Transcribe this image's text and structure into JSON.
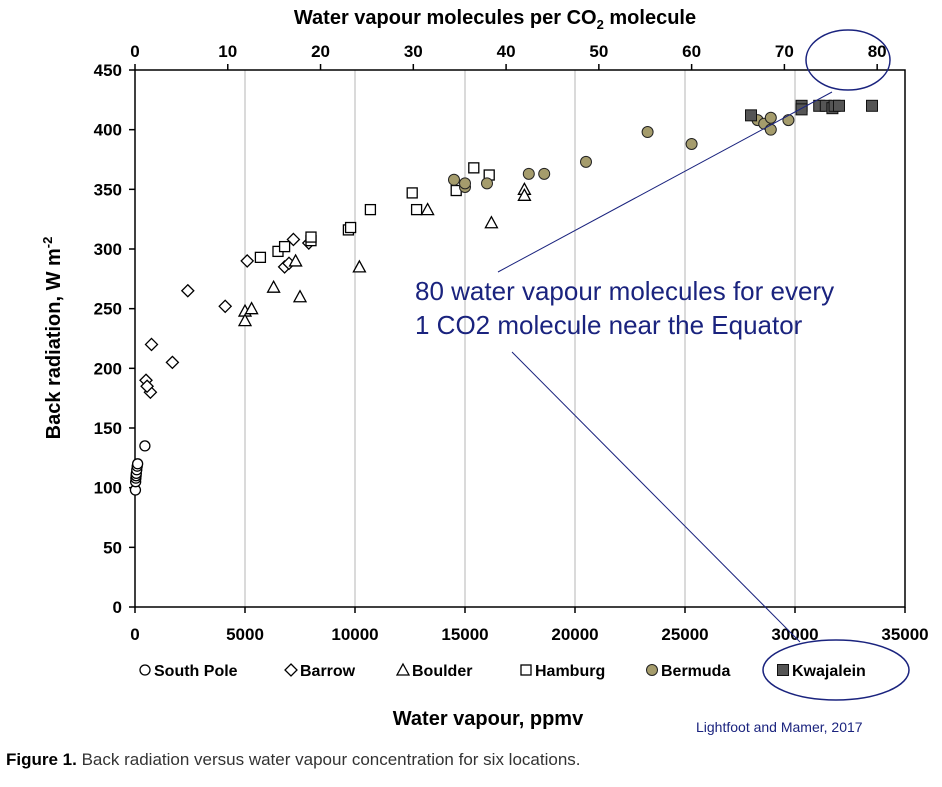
{
  "chart_data": {
    "type": "scatter",
    "xlabel": "Water vapour, ppmv",
    "ylabel": "Back radiation, W m",
    "ylabel_superscript": "-2",
    "top_xlabel_prefix": "Water vapour molecules per CO",
    "top_xlabel_sub": "2",
    "top_xlabel_suffix": " molecule",
    "xlim": [
      0,
      35000
    ],
    "ylim": [
      0,
      450
    ],
    "top_xlim": [
      0,
      83
    ],
    "x_ticks": [
      0,
      5000,
      10000,
      15000,
      20000,
      25000,
      30000,
      35000
    ],
    "y_ticks": [
      0,
      50,
      100,
      150,
      200,
      250,
      300,
      350,
      400,
      450
    ],
    "top_ticks": [
      0,
      10,
      20,
      30,
      40,
      50,
      60,
      70,
      80
    ],
    "grid": "vertical",
    "legend_placement": "bottom",
    "series": [
      {
        "name": "South Pole",
        "marker": "circle-open",
        "color": "#000000",
        "points": [
          [
            20,
            98
          ],
          [
            30,
            105
          ],
          [
            40,
            108
          ],
          [
            50,
            110
          ],
          [
            60,
            112
          ],
          [
            80,
            115
          ],
          [
            100,
            118
          ],
          [
            120,
            120
          ],
          [
            450,
            135
          ]
        ]
      },
      {
        "name": "Barrow",
        "marker": "diamond-open",
        "color": "#000000",
        "points": [
          [
            500,
            190
          ],
          [
            700,
            180
          ],
          [
            550,
            185
          ],
          [
            750,
            220
          ],
          [
            1700,
            205
          ],
          [
            2400,
            265
          ],
          [
            4100,
            252
          ],
          [
            5100,
            290
          ],
          [
            6800,
            285
          ],
          [
            7000,
            288
          ],
          [
            7200,
            308
          ],
          [
            7900,
            305
          ]
        ]
      },
      {
        "name": "Boulder",
        "marker": "triangle-open",
        "color": "#000000",
        "points": [
          [
            5000,
            248
          ],
          [
            5000,
            240
          ],
          [
            5300,
            250
          ],
          [
            6300,
            268
          ],
          [
            7300,
            290
          ],
          [
            7500,
            260
          ],
          [
            10200,
            285
          ],
          [
            13300,
            333
          ],
          [
            16200,
            322
          ],
          [
            17700,
            350
          ],
          [
            17700,
            345
          ]
        ]
      },
      {
        "name": "Hamburg",
        "marker": "square-open",
        "color": "#000000",
        "points": [
          [
            5700,
            293
          ],
          [
            6500,
            298
          ],
          [
            6800,
            302
          ],
          [
            8000,
            307
          ],
          [
            8000,
            310
          ],
          [
            9700,
            316
          ],
          [
            9800,
            318
          ],
          [
            10700,
            333
          ],
          [
            12600,
            347
          ],
          [
            12800,
            333
          ],
          [
            14600,
            349
          ],
          [
            15400,
            368
          ],
          [
            16100,
            362
          ]
        ]
      },
      {
        "name": "Bermuda",
        "marker": "circle-filled",
        "color": "#a59c6c",
        "points": [
          [
            14500,
            358
          ],
          [
            15000,
            352
          ],
          [
            15000,
            355
          ],
          [
            16000,
            355
          ],
          [
            17900,
            363
          ],
          [
            18600,
            363
          ],
          [
            20500,
            373
          ],
          [
            23300,
            398
          ],
          [
            25300,
            388
          ],
          [
            28300,
            408
          ],
          [
            28600,
            405
          ],
          [
            28900,
            400
          ],
          [
            28900,
            410
          ],
          [
            29700,
            408
          ]
        ]
      },
      {
        "name": "Kwajalein",
        "marker": "square-filled",
        "color": "#555555",
        "points": [
          [
            28000,
            412
          ],
          [
            30300,
            420
          ],
          [
            30300,
            417
          ],
          [
            31100,
            420
          ],
          [
            31400,
            420
          ],
          [
            31700,
            418
          ],
          [
            31800,
            420
          ],
          [
            32000,
            420
          ],
          [
            33500,
            420
          ]
        ]
      }
    ],
    "annotation": {
      "line1": "80 water vapour molecules for every",
      "line2": "1 CO2 molecule near the Equator"
    },
    "credit": "Lightfoot and Mamer, 2017"
  },
  "caption": {
    "label": "Figure 1.",
    "text": " Back radiation versus water vapour concentration for six locations."
  }
}
